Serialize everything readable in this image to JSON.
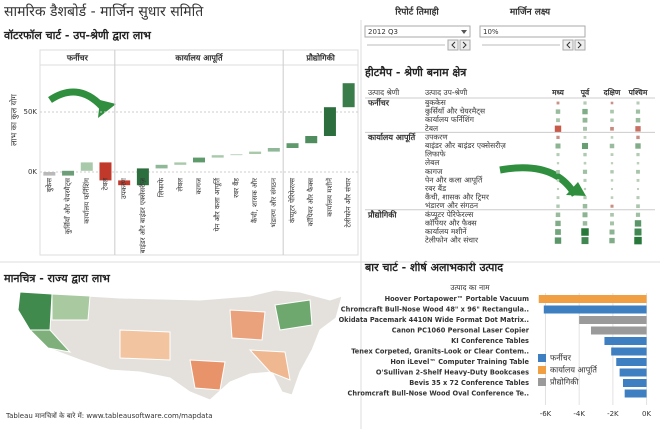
{
  "header": {
    "title": "सामरिक डैशबोर्ड - मार्जिन सुधार समिति"
  },
  "controls": [
    {
      "label": "रिपोर्ट तिमाही",
      "value": "2012 Q3"
    },
    {
      "label": "मार्जिन लक्ष्य",
      "value": "10%"
    }
  ],
  "chart_data": [
    {
      "type": "waterfall",
      "title": "वॉटरफॉल चार्ट - उप-श्रेणी द्वारा लाभ",
      "ylabel": "लाभ का कुल योग",
      "ylim": [
        -15000,
        100000
      ],
      "yticks": [
        {
          "value": 0,
          "label": "0K"
        },
        {
          "value": 50000,
          "label": "50K"
        }
      ],
      "grid": true,
      "groups": [
        {
          "name": "फर्नीचर",
          "categories": [
            "बुकेस",
            "कुर्सियाँ और चेयरमैट्स",
            "कार्यालय फर्निशिंग",
            "टेबल"
          ],
          "values": [
            -3000,
            4000,
            7000,
            -15000
          ],
          "colors": [
            "#b9b9b9",
            "#6e9e78",
            "#a9c9ab",
            "#c0392b"
          ]
        },
        {
          "name": "कार्यालय आपूर्ति",
          "categories": [
            "उपकरण",
            "बाइंडर और बाइंडर एक्सेसरीज़",
            "लिफाफे",
            "लेबल",
            "कागज",
            "पेन और कला आपूर्ति",
            "रबर बैंड",
            "कैंची, शासक और",
            "भंडारण और संगठन"
          ],
          "values": [
            -4000,
            14000,
            3000,
            2000,
            4000,
            2000,
            1000,
            2000,
            3000
          ],
          "colors": [
            "#c0392b",
            "#2d6e3e",
            "#8fb898",
            "#a9c9ab",
            "#5f9a6c",
            "#a9c9ab",
            "#c9dccb",
            "#a9c9ab",
            "#8fb898"
          ]
        },
        {
          "name": "प्रौद्योगिकी",
          "categories": [
            "कंप्यूटर पेरिफेरल्स",
            "कॉपियर और फैक्स",
            "कार्यालय मशीनें",
            "टेलीफोन और संचार"
          ],
          "values": [
            4000,
            6000,
            24000,
            20000
          ],
          "colors": [
            "#5f9a6c",
            "#4f8d5e",
            "#2d6e3e",
            "#3a7d4a"
          ]
        }
      ]
    },
    {
      "type": "heatmap",
      "title": "हीटमैप - श्रेणी बनाम क्षेत्र",
      "row_header": "उत्पाद श्रेणी",
      "sub_header": "उत्पाद उप-श्रेणी",
      "columns": [
        "मध्य",
        "पूर्व",
        "दक्षिण",
        "पश्चिम"
      ],
      "groups": [
        {
          "name": "फर्नीचर",
          "rows": [
            {
              "name": "बुककेस",
              "values": [
                -300,
                500,
                -200,
                400
              ]
            },
            {
              "name": "कुर्सियाँ और चेयरमैट्स",
              "values": [
                1500,
                2500,
                800,
                1200
              ]
            },
            {
              "name": "कार्यालय फर्निशिंग",
              "values": [
                900,
                1800,
                600,
                1500
              ]
            },
            {
              "name": "टेबल",
              "values": [
                -4000,
                1000,
                -800,
                -2500
              ]
            }
          ]
        },
        {
          "name": "कार्यालय आपूर्ति",
          "rows": [
            {
              "name": "उपकरण",
              "values": [
                -500,
                300,
                200,
                -600
              ]
            },
            {
              "name": "बाइंडर और बाइंडर एक्सेसरीज़",
              "values": [
                2000,
                3500,
                1500,
                2500
              ]
            },
            {
              "name": "लिफाफे",
              "values": [
                400,
                600,
                300,
                500
              ]
            },
            {
              "name": "लेबल",
              "values": [
                100,
                200,
                100,
                150
              ]
            },
            {
              "name": "कागज",
              "values": [
                800,
                1200,
                600,
                900
              ]
            },
            {
              "name": "पेन और कला आपूर्ति",
              "values": [
                200,
                400,
                150,
                300
              ]
            },
            {
              "name": "रबर बैंड",
              "values": [
                50,
                80,
                40,
                60
              ]
            },
            {
              "name": "कैंची, शासक और ट्रिमर",
              "values": [
                300,
                500,
                200,
                400
              ]
            },
            {
              "name": "भंडारण और संगठन",
              "values": [
                600,
                1500,
                -400,
                800
              ]
            }
          ]
        },
        {
          "name": "प्रौद्योगिकी",
          "rows": [
            {
              "name": "कंप्यूटर पेरिफेरल्स",
              "values": [
                1500,
                2000,
                800,
                1200
              ]
            },
            {
              "name": "कॉपियर और फैक्स",
              "values": [
                2500,
                1500,
                1000,
                4000
              ]
            },
            {
              "name": "कार्यालय मशीनें",
              "values": [
                3000,
                6000,
                2000,
                5000
              ]
            },
            {
              "name": "टेलीफोन और संचार",
              "values": [
                4000,
                5000,
                2500,
                6000
              ]
            }
          ]
        }
      ]
    },
    {
      "type": "map",
      "title": "मानचित्र - राज्य द्वारा लाभ",
      "footnote": "Tableau मानचित्रों के बारे में: www.tableausoftware.com/mapdata"
    },
    {
      "type": "bar",
      "orientation": "horizontal",
      "title": "बार चार्ट - शीर्ष अलाभकारी उत्पाद",
      "category_header": "उत्पाद का नाम",
      "categories": [
        "Hoover Portapower™ Portable Vacuum",
        "Chromcraft Bull-Nose Wood 48\" x 96\" Rectangula..",
        "Okidata Pacemark 4410N Wide Format Dot Matrix..",
        "Canon PC1060 Personal Laser Copier",
        "KI Conference Tables",
        "Tenex Corpeted, Granits-Look or Clear Contem..",
        "Hon iLevel™ Computer Training Table",
        "O'Sullivan 2-Shelf Heavy-Duty Bookcases",
        "Bevis 35 x 72 Conference Tables",
        "Chromcraft Bull-Nose Wood Oval Conference Te.."
      ],
      "values": [
        -6400,
        -6100,
        -4000,
        -3300,
        -2500,
        -2100,
        -1800,
        -1600,
        -1400,
        -1300
      ],
      "colors": [
        "#f0a043",
        "#3d7fc1",
        "#9a9a9a",
        "#9a9a9a",
        "#3d7fc1",
        "#3d7fc1",
        "#3d7fc1",
        "#3d7fc1",
        "#3d7fc1",
        "#3d7fc1"
      ],
      "xlim": [
        -6800,
        500
      ],
      "xticks": [
        {
          "value": -6000,
          "label": "-6K"
        },
        {
          "value": -4000,
          "label": "-4K"
        },
        {
          "value": -2000,
          "label": "-2K"
        },
        {
          "value": 0,
          "label": "0K"
        }
      ],
      "legend": [
        {
          "name": "फर्नीचर",
          "color": "#3d7fc1"
        },
        {
          "name": "कार्यालय आपूर्ति",
          "color": "#f0a043"
        },
        {
          "name": "प्रौद्योगिकी",
          "color": "#9a9a9a"
        }
      ]
    }
  ]
}
